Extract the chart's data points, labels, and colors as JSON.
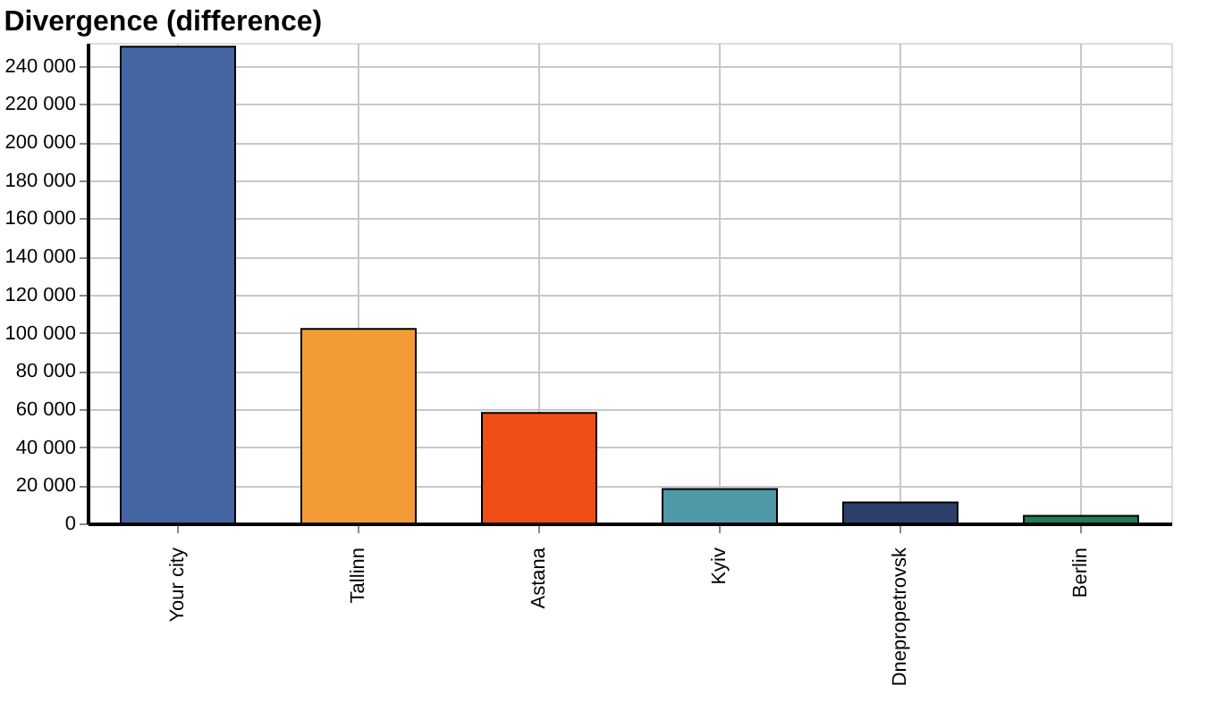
{
  "chart_data": {
    "type": "bar",
    "title": "Divergence (difference)",
    "categories": [
      "Your city",
      "Tallinn",
      "Astana",
      "Kyiv",
      "Dnepropetrovsk",
      "Berlin"
    ],
    "values": [
      250000,
      102000,
      58000,
      18000,
      11000,
      4000
    ],
    "colors": [
      "#4565a2",
      "#f39c36",
      "#f04e16",
      "#4e98a8",
      "#2c3f6b",
      "#1f7d5a"
    ],
    "ylim": [
      0,
      252000
    ],
    "yticks": [
      {
        "value": 0,
        "label": "0"
      },
      {
        "value": 20000,
        "label": "20 000"
      },
      {
        "value": 40000,
        "label": "40 000"
      },
      {
        "value": 60000,
        "label": "60 000"
      },
      {
        "value": 80000,
        "label": "80 000"
      },
      {
        "value": 100000,
        "label": "100 000"
      },
      {
        "value": 120000,
        "label": "120 000"
      },
      {
        "value": 140000,
        "label": "140 000"
      },
      {
        "value": 160000,
        "label": "160 000"
      },
      {
        "value": 180000,
        "label": "180 000"
      },
      {
        "value": 200000,
        "label": "200 000"
      },
      {
        "value": 220000,
        "label": "220 000"
      },
      {
        "value": 240000,
        "label": "240 000"
      }
    ],
    "grid": true
  }
}
